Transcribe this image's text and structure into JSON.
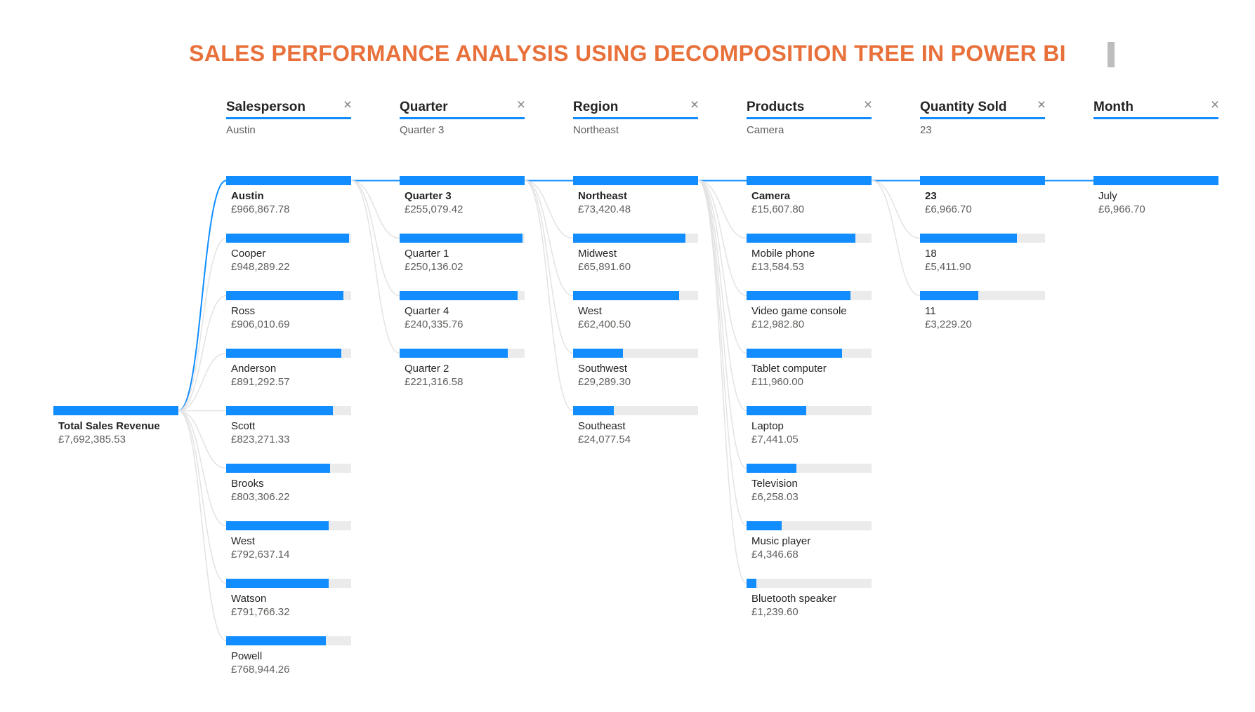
{
  "title": "SALES PERFORMANCE ANALYSIS USING DECOMPOSITION TREE IN POWER BI",
  "colors": {
    "title": "#E8703A",
    "bar": "#118DFF",
    "track": "#EBEBEB",
    "connector_active": "#118DFF",
    "connector_inactive": "#E3E3E3"
  },
  "root": {
    "label": "Total Sales Revenue",
    "value_text": "£7,692,385.53",
    "value": 7692385.53
  },
  "levels": [
    {
      "header": "Salesperson",
      "selected": "Austin",
      "close_icon": "close-icon",
      "nodes": [
        {
          "label": "Austin",
          "value_text": "£966,867.78",
          "value": 966867.78
        },
        {
          "label": "Cooper",
          "value_text": "£948,289.22",
          "value": 948289.22
        },
        {
          "label": "Ross",
          "value_text": "£906,010.69",
          "value": 906010.69
        },
        {
          "label": "Anderson",
          "value_text": "£891,292.57",
          "value": 891292.57
        },
        {
          "label": "Scott",
          "value_text": "£823,271.33",
          "value": 823271.33
        },
        {
          "label": "Brooks",
          "value_text": "£803,306.22",
          "value": 803306.22
        },
        {
          "label": "West",
          "value_text": "£792,637.14",
          "value": 792637.14
        },
        {
          "label": "Watson",
          "value_text": "£791,766.32",
          "value": 791766.32
        },
        {
          "label": "Powell",
          "value_text": "£768,944.26",
          "value": 768944.26
        }
      ]
    },
    {
      "header": "Quarter",
      "selected": "Quarter 3",
      "close_icon": "close-icon",
      "nodes": [
        {
          "label": "Quarter 3",
          "value_text": "£255,079.42",
          "value": 255079.42
        },
        {
          "label": "Quarter 1",
          "value_text": "£250,136.02",
          "value": 250136.02
        },
        {
          "label": "Quarter 4",
          "value_text": "£240,335.76",
          "value": 240335.76
        },
        {
          "label": "Quarter 2",
          "value_text": "£221,316.58",
          "value": 221316.58
        }
      ]
    },
    {
      "header": "Region",
      "selected": "Northeast",
      "close_icon": "close-icon",
      "nodes": [
        {
          "label": "Northeast",
          "value_text": "£73,420.48",
          "value": 73420.48
        },
        {
          "label": "Midwest",
          "value_text": "£65,891.60",
          "value": 65891.6
        },
        {
          "label": "West",
          "value_text": "£62,400.50",
          "value": 62400.5
        },
        {
          "label": "Southwest",
          "value_text": "£29,289.30",
          "value": 29289.3
        },
        {
          "label": "Southeast",
          "value_text": "£24,077.54",
          "value": 24077.54
        }
      ]
    },
    {
      "header": "Products",
      "selected": "Camera",
      "close_icon": "close-icon",
      "nodes": [
        {
          "label": "Camera",
          "value_text": "£15,607.80",
          "value": 15607.8
        },
        {
          "label": "Mobile phone",
          "value_text": "£13,584.53",
          "value": 13584.53
        },
        {
          "label": "Video game console",
          "value_text": "£12,982.80",
          "value": 12982.8
        },
        {
          "label": "Tablet computer",
          "value_text": "£11,960.00",
          "value": 11960.0
        },
        {
          "label": "Laptop",
          "value_text": "£7,441.05",
          "value": 7441.05
        },
        {
          "label": "Television",
          "value_text": "£6,258.03",
          "value": 6258.03
        },
        {
          "label": "Music player",
          "value_text": "£4,346.68",
          "value": 4346.68
        },
        {
          "label": "Bluetooth speaker",
          "value_text": "£1,239.60",
          "value": 1239.6
        }
      ]
    },
    {
      "header": "Quantity Sold",
      "selected": "23",
      "close_icon": "close-icon",
      "nodes": [
        {
          "label": "23",
          "value_text": "£6,966.70",
          "value": 6966.7
        },
        {
          "label": "18",
          "value_text": "£5,411.90",
          "value": 5411.9
        },
        {
          "label": "11",
          "value_text": "£3,229.20",
          "value": 3229.2
        }
      ]
    },
    {
      "header": "Month",
      "selected": "",
      "close_icon": "close-icon",
      "nodes": [
        {
          "label": "July",
          "value_text": "£6,966.70",
          "value": 6966.7
        }
      ]
    }
  ]
}
